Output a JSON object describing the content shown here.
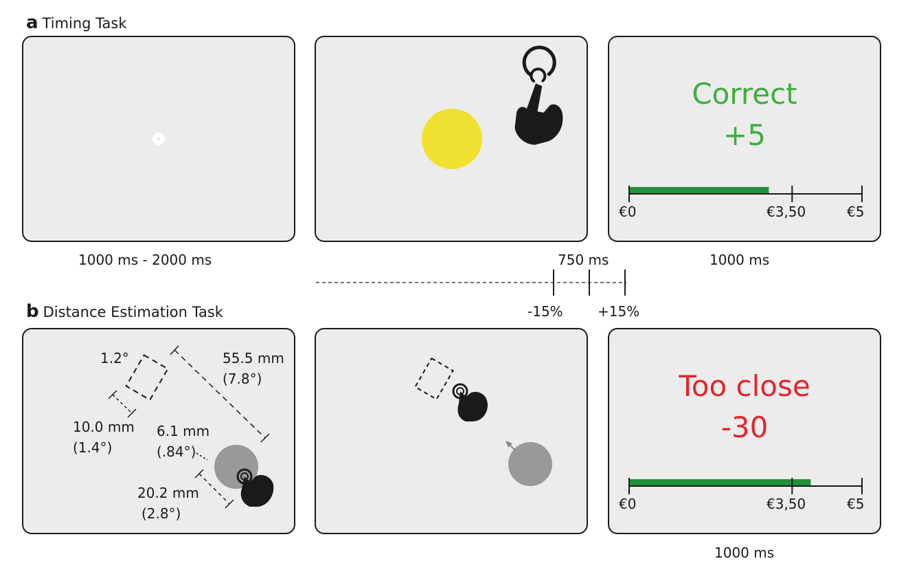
{
  "section_a": {
    "letter": "a",
    "title": "Timing Task"
  },
  "section_b": {
    "letter": "b",
    "title": "Distance Estimation Task"
  },
  "timing": {
    "fixation_duration": "1000 ms - 2000 ms",
    "target_duration": "750 ms",
    "feedback_duration": "1000 ms",
    "window_minus": "-15%",
    "window_plus": "+15%",
    "feedback_text": "Correct",
    "feedback_points": "+5",
    "feedback_color": "#3dae3d",
    "bar_value_euro": 3.0
  },
  "distance": {
    "angle_label": "1.2°",
    "distance_mm": "55.5 mm",
    "distance_deg": "(7.8°)",
    "width_mm": "10.0 mm",
    "width_deg": "(1.4°)",
    "start_mm": "6.1 mm",
    "start_deg": "(.84°)",
    "finger_mm": "20.2 mm",
    "finger_deg": "(2.8°)",
    "feedback_text": "Too close",
    "feedback_points": "-30",
    "feedback_color": "#e1262b",
    "feedback_duration": "1000 ms",
    "bar_value_euro": 3.9
  },
  "scale": {
    "min_label": "€0",
    "mid_label": "€3,50",
    "max_label": "€5",
    "min": 0,
    "mid": 3.5,
    "max": 5
  },
  "colors": {
    "target": "#f0e130",
    "bar": "#21903a",
    "disc": "#999999"
  }
}
